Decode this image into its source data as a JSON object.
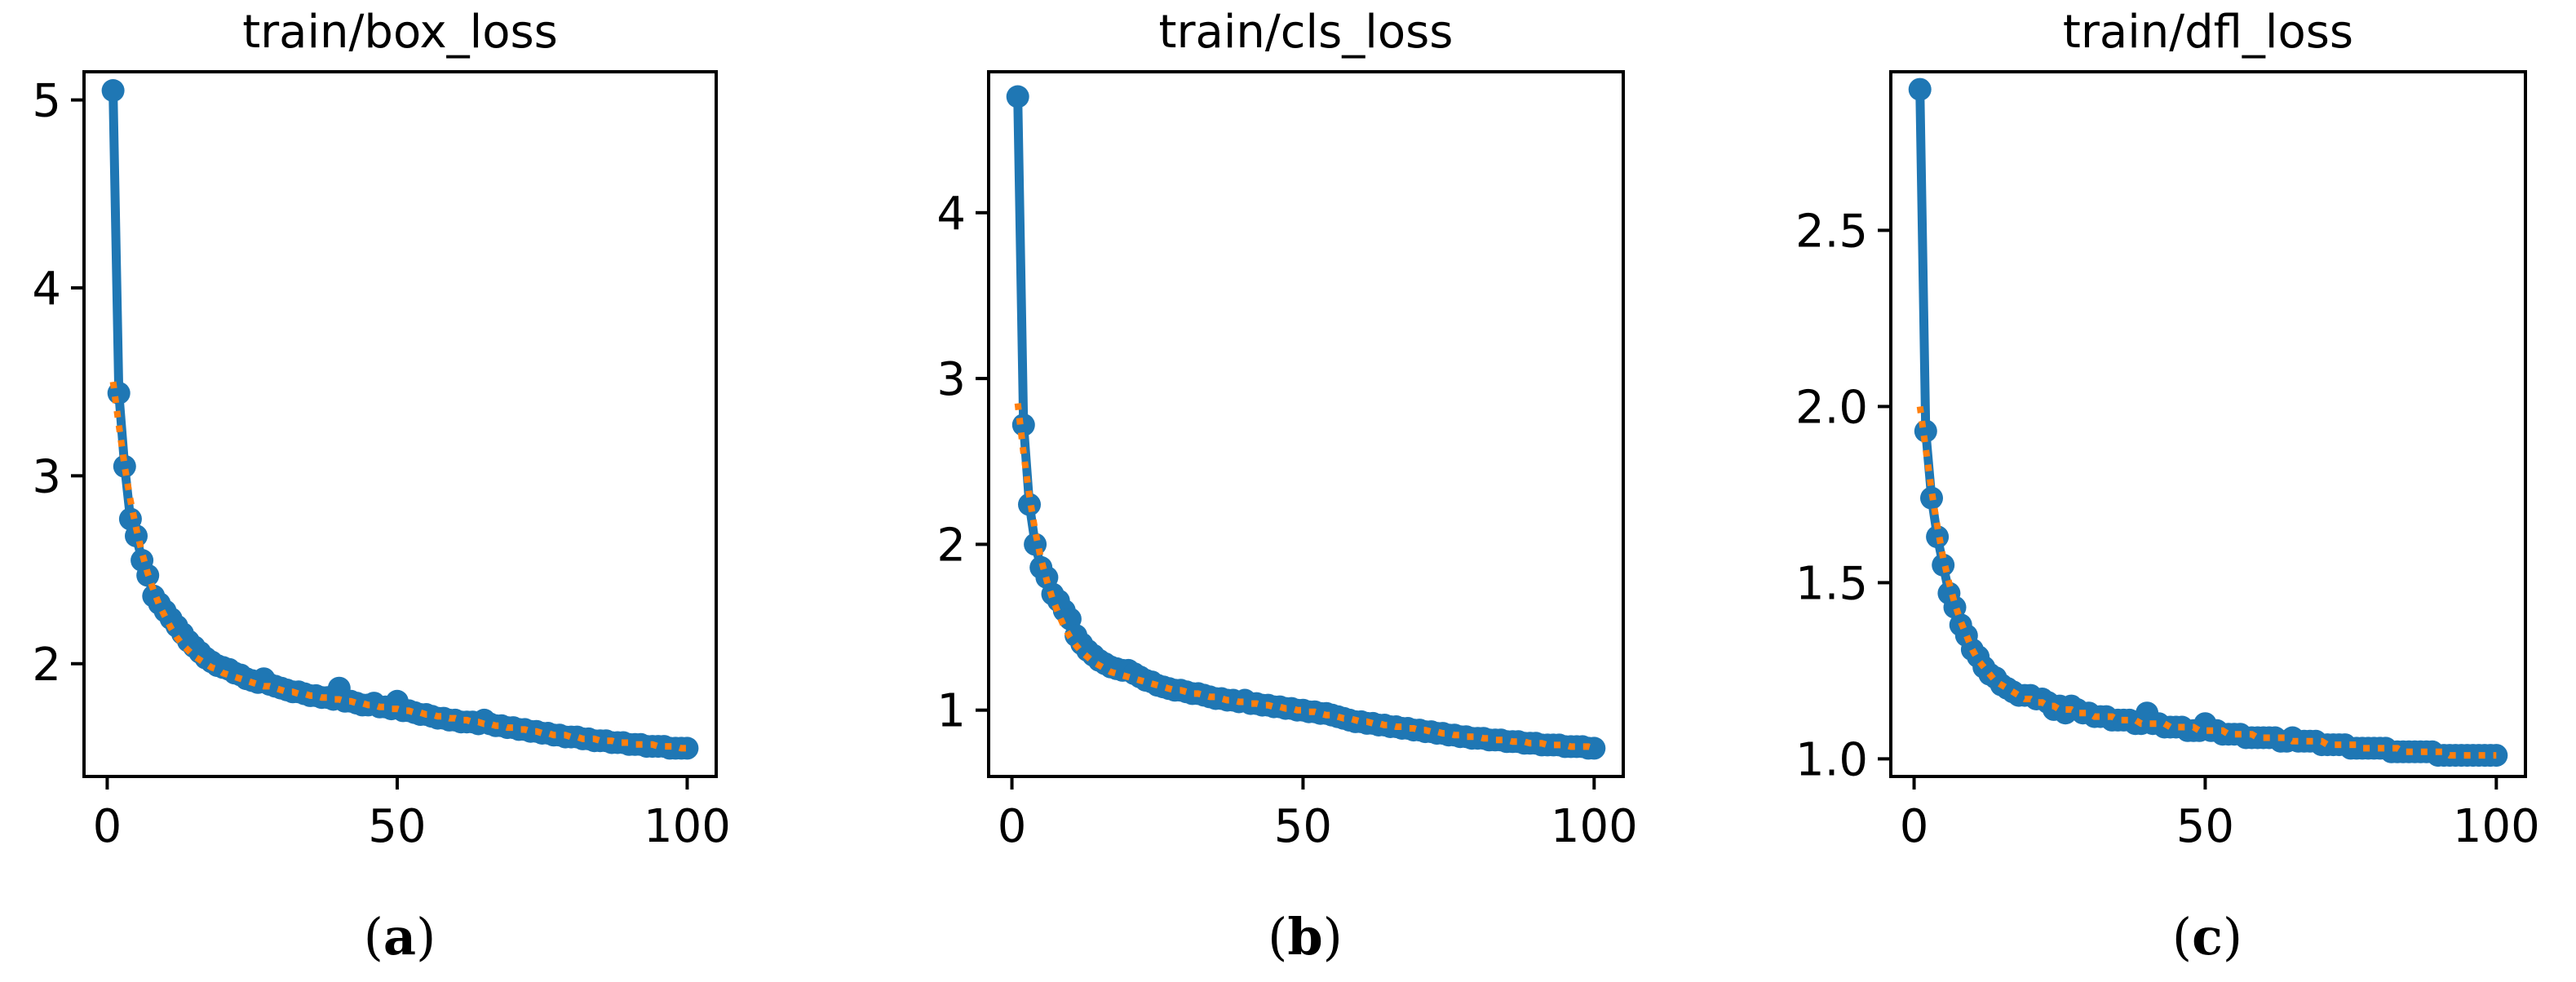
{
  "colors": {
    "observed_line": "#1f77b4",
    "smooth_line": "#ff7f0e",
    "axes": "#000000",
    "background": "#ffffff"
  },
  "chart_data": [
    {
      "type": "line",
      "title": "train/box_loss",
      "caption": "a",
      "xlabel": "",
      "ylabel": "",
      "xlim": [
        -4,
        105
      ],
      "ylim": [
        1.4,
        5.15
      ],
      "xticks": [
        0,
        50,
        100
      ],
      "yticks": [
        2,
        3,
        4,
        5
      ],
      "grid": false,
      "x_range": [
        1,
        100
      ],
      "series": [
        {
          "style": "line-with-markers",
          "color": "#1f77b4",
          "values": [
            5.05,
            3.44,
            3.05,
            2.77,
            2.68,
            2.55,
            2.47,
            2.36,
            2.32,
            2.28,
            2.24,
            2.2,
            2.16,
            2.12,
            2.09,
            2.06,
            2.03,
            2.01,
            1.99,
            1.98,
            1.97,
            1.95,
            1.94,
            1.92,
            1.91,
            1.9,
            1.92,
            1.89,
            1.88,
            1.87,
            1.86,
            1.85,
            1.85,
            1.84,
            1.83,
            1.83,
            1.82,
            1.82,
            1.81,
            1.87,
            1.8,
            1.8,
            1.79,
            1.78,
            1.78,
            1.79,
            1.77,
            1.77,
            1.76,
            1.8,
            1.75,
            1.75,
            1.74,
            1.73,
            1.73,
            1.72,
            1.71,
            1.71,
            1.7,
            1.7,
            1.69,
            1.69,
            1.69,
            1.68,
            1.7,
            1.68,
            1.67,
            1.67,
            1.66,
            1.66,
            1.65,
            1.65,
            1.64,
            1.64,
            1.63,
            1.63,
            1.62,
            1.62,
            1.61,
            1.61,
            1.61,
            1.6,
            1.6,
            1.59,
            1.59,
            1.59,
            1.58,
            1.58,
            1.58,
            1.57,
            1.57,
            1.57,
            1.56,
            1.56,
            1.56,
            1.56,
            1.55,
            1.55,
            1.55,
            1.55
          ]
        },
        {
          "style": "dotted",
          "color": "#ff7f0e",
          "values": [
            3.5,
            3.27,
            3.05,
            2.87,
            2.72,
            2.59,
            2.48,
            2.39,
            2.31,
            2.25,
            2.19,
            2.14,
            2.1,
            2.07,
            2.04,
            2.02,
            2.0,
            1.98,
            1.97,
            1.95,
            1.94,
            1.93,
            1.92,
            1.91,
            1.9,
            1.89,
            1.88,
            1.88,
            1.87,
            1.86,
            1.85,
            1.85,
            1.84,
            1.84,
            1.83,
            1.83,
            1.82,
            1.82,
            1.81,
            1.81,
            1.8,
            1.8,
            1.79,
            1.79,
            1.78,
            1.78,
            1.77,
            1.77,
            1.76,
            1.76,
            1.75,
            1.75,
            1.74,
            1.74,
            1.73,
            1.73,
            1.72,
            1.72,
            1.71,
            1.71,
            1.7,
            1.7,
            1.69,
            1.69,
            1.68,
            1.68,
            1.67,
            1.67,
            1.66,
            1.66,
            1.65,
            1.65,
            1.64,
            1.64,
            1.63,
            1.63,
            1.62,
            1.62,
            1.62,
            1.61,
            1.61,
            1.6,
            1.6,
            1.6,
            1.59,
            1.59,
            1.59,
            1.58,
            1.58,
            1.58,
            1.57,
            1.57,
            1.57,
            1.57,
            1.56,
            1.56,
            1.56,
            1.56,
            1.55,
            1.55
          ]
        }
      ]
    },
    {
      "type": "line",
      "title": "train/cls_loss",
      "caption": "b",
      "xlabel": "",
      "ylabel": "",
      "xlim": [
        -4,
        105
      ],
      "ylim": [
        0.6,
        4.85
      ],
      "xticks": [
        0,
        50,
        100
      ],
      "yticks": [
        1,
        2,
        3,
        4
      ],
      "grid": false,
      "x_range": [
        1,
        100
      ],
      "series": [
        {
          "style": "line-with-markers",
          "color": "#1f77b4",
          "values": [
            4.7,
            2.72,
            2.24,
            2.0,
            1.86,
            1.8,
            1.7,
            1.66,
            1.6,
            1.55,
            1.45,
            1.4,
            1.36,
            1.33,
            1.3,
            1.28,
            1.26,
            1.25,
            1.24,
            1.24,
            1.22,
            1.2,
            1.18,
            1.17,
            1.15,
            1.14,
            1.13,
            1.12,
            1.12,
            1.11,
            1.1,
            1.1,
            1.09,
            1.08,
            1.07,
            1.07,
            1.06,
            1.06,
            1.05,
            1.06,
            1.04,
            1.04,
            1.03,
            1.03,
            1.02,
            1.02,
            1.01,
            1.01,
            1.0,
            1.0,
            0.99,
            0.99,
            0.98,
            0.98,
            0.97,
            0.96,
            0.95,
            0.94,
            0.93,
            0.93,
            0.92,
            0.92,
            0.91,
            0.91,
            0.9,
            0.9,
            0.89,
            0.89,
            0.88,
            0.88,
            0.87,
            0.87,
            0.86,
            0.86,
            0.85,
            0.85,
            0.84,
            0.84,
            0.83,
            0.83,
            0.83,
            0.82,
            0.82,
            0.82,
            0.81,
            0.81,
            0.81,
            0.8,
            0.8,
            0.8,
            0.79,
            0.79,
            0.79,
            0.79,
            0.78,
            0.78,
            0.78,
            0.78,
            0.77,
            0.77
          ]
        },
        {
          "style": "dotted",
          "color": "#ff7f0e",
          "values": [
            2.85,
            2.55,
            2.29,
            2.08,
            1.91,
            1.78,
            1.67,
            1.58,
            1.5,
            1.44,
            1.39,
            1.35,
            1.32,
            1.29,
            1.27,
            1.25,
            1.23,
            1.22,
            1.21,
            1.2,
            1.19,
            1.18,
            1.17,
            1.16,
            1.15,
            1.14,
            1.13,
            1.12,
            1.12,
            1.11,
            1.1,
            1.1,
            1.09,
            1.08,
            1.08,
            1.07,
            1.06,
            1.06,
            1.05,
            1.05,
            1.04,
            1.04,
            1.03,
            1.03,
            1.02,
            1.02,
            1.01,
            1.01,
            1.0,
            1.0,
            0.99,
            0.99,
            0.98,
            0.97,
            0.97,
            0.96,
            0.95,
            0.95,
            0.94,
            0.93,
            0.93,
            0.92,
            0.92,
            0.91,
            0.91,
            0.9,
            0.9,
            0.89,
            0.89,
            0.88,
            0.88,
            0.87,
            0.87,
            0.86,
            0.86,
            0.85,
            0.85,
            0.84,
            0.84,
            0.84,
            0.83,
            0.83,
            0.82,
            0.82,
            0.82,
            0.81,
            0.81,
            0.81,
            0.8,
            0.8,
            0.8,
            0.79,
            0.79,
            0.79,
            0.79,
            0.78,
            0.78,
            0.78,
            0.78,
            0.77
          ]
        }
      ]
    },
    {
      "type": "line",
      "title": "train/dfl_loss",
      "caption": "c",
      "xlabel": "",
      "ylabel": "",
      "xlim": [
        -4,
        105
      ],
      "ylim": [
        0.95,
        2.95
      ],
      "xticks": [
        0,
        50,
        100
      ],
      "yticks": [
        1.0,
        1.5,
        2.0,
        2.5
      ],
      "grid": false,
      "x_range": [
        1,
        100
      ],
      "series": [
        {
          "style": "line-with-markers",
          "color": "#1f77b4",
          "values": [
            2.9,
            1.93,
            1.74,
            1.63,
            1.55,
            1.47,
            1.43,
            1.38,
            1.35,
            1.31,
            1.29,
            1.26,
            1.24,
            1.23,
            1.21,
            1.2,
            1.19,
            1.18,
            1.18,
            1.18,
            1.17,
            1.17,
            1.16,
            1.14,
            1.15,
            1.13,
            1.15,
            1.14,
            1.13,
            1.13,
            1.12,
            1.12,
            1.12,
            1.11,
            1.11,
            1.11,
            1.11,
            1.1,
            1.1,
            1.13,
            1.1,
            1.1,
            1.09,
            1.09,
            1.09,
            1.09,
            1.08,
            1.08,
            1.08,
            1.1,
            1.08,
            1.08,
            1.07,
            1.07,
            1.07,
            1.07,
            1.06,
            1.06,
            1.06,
            1.06,
            1.06,
            1.06,
            1.05,
            1.05,
            1.06,
            1.05,
            1.05,
            1.05,
            1.05,
            1.04,
            1.04,
            1.04,
            1.04,
            1.04,
            1.03,
            1.03,
            1.03,
            1.03,
            1.03,
            1.03,
            1.03,
            1.02,
            1.02,
            1.02,
            1.02,
            1.02,
            1.02,
            1.02,
            1.02,
            1.01,
            1.01,
            1.01,
            1.01,
            1.01,
            1.01,
            1.01,
            1.01,
            1.01,
            1.01,
            1.01
          ]
        },
        {
          "style": "dotted",
          "color": "#ff7f0e",
          "values": [
            2.0,
            1.88,
            1.76,
            1.66,
            1.57,
            1.5,
            1.44,
            1.39,
            1.35,
            1.31,
            1.28,
            1.26,
            1.24,
            1.22,
            1.21,
            1.2,
            1.19,
            1.18,
            1.17,
            1.17,
            1.16,
            1.16,
            1.15,
            1.15,
            1.14,
            1.14,
            1.14,
            1.13,
            1.13,
            1.13,
            1.12,
            1.12,
            1.12,
            1.12,
            1.11,
            1.11,
            1.11,
            1.11,
            1.1,
            1.1,
            1.1,
            1.1,
            1.1,
            1.09,
            1.09,
            1.09,
            1.09,
            1.09,
            1.08,
            1.08,
            1.08,
            1.08,
            1.08,
            1.07,
            1.07,
            1.07,
            1.07,
            1.07,
            1.06,
            1.06,
            1.06,
            1.06,
            1.06,
            1.06,
            1.05,
            1.05,
            1.05,
            1.05,
            1.05,
            1.05,
            1.04,
            1.04,
            1.04,
            1.04,
            1.04,
            1.04,
            1.03,
            1.03,
            1.03,
            1.03,
            1.03,
            1.03,
            1.03,
            1.02,
            1.02,
            1.02,
            1.02,
            1.02,
            1.02,
            1.02,
            1.02,
            1.01,
            1.01,
            1.01,
            1.01,
            1.01,
            1.01,
            1.01,
            1.01,
            1.01
          ]
        }
      ]
    }
  ]
}
